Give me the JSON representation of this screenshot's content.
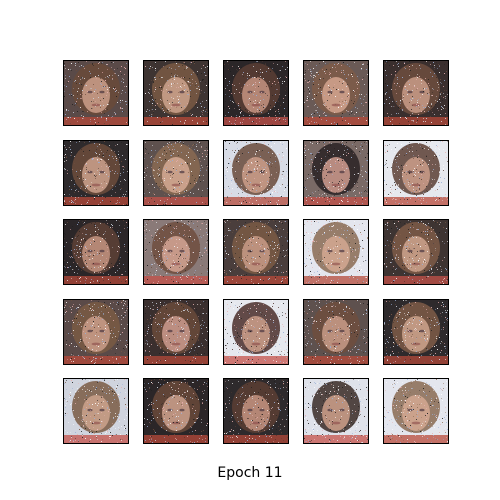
{
  "figure": {
    "caption": "Epoch 11",
    "background_color": "#ffffff",
    "border_color": "#000000",
    "grid": {
      "rows": 5,
      "cols": 5
    },
    "samples": [
      {
        "bg": "#5a4a48",
        "hair": "#6a4a3a",
        "skin": "#c79a86",
        "noise": "#d8e2f0",
        "fringe": "#b44a3a"
      },
      {
        "bg": "#3e3432",
        "hair": "#7a5a44",
        "skin": "#c9a08a",
        "noise": "#e6ecf4",
        "fringe": "#b8493a"
      },
      {
        "bg": "#2b2628",
        "hair": "#5a3e34",
        "skin": "#bf8f7c",
        "noise": "#d6dde8",
        "fringe": "#c4524a"
      },
      {
        "bg": "#6a5a56",
        "hair": "#7e5c48",
        "skin": "#cfa18c",
        "noise": "#e3e9f2",
        "fringe": "#b8493a"
      },
      {
        "bg": "#3a2f2e",
        "hair": "#6e4e3e",
        "skin": "#c49884",
        "noise": "#d9e0ec",
        "fringe": "#b44a3a"
      },
      {
        "bg": "#2e2a2c",
        "hair": "#6c4c3c",
        "skin": "#c69c88",
        "noise": "#dde4ee",
        "fringe": "#b8493a"
      },
      {
        "bg": "#5e514e",
        "hair": "#8a6a52",
        "skin": "#d0a690",
        "noise": "#e6ecf4",
        "fringe": "#c4524a"
      },
      {
        "bg": "#d8dce6",
        "hair": "#6a4a3a",
        "skin": "#c79a86",
        "noise": "#f0f2f8",
        "fringe": "#b44a3a"
      },
      {
        "bg": "#7a6a66",
        "hair": "#2a2224",
        "skin": "#c6968a",
        "noise": "#e3e9f2",
        "fringe": "#c4524a"
      },
      {
        "bg": "#e6e8ee",
        "hair": "#5a3e34",
        "skin": "#c79a86",
        "noise": "#f4f4f8",
        "fringe": "#b8493a"
      },
      {
        "bg": "#2b2628",
        "hair": "#5e4236",
        "skin": "#bf8f7c",
        "noise": "#d6dde8",
        "fringe": "#b44a3a"
      },
      {
        "bg": "#8a7a78",
        "hair": "#6e4e3e",
        "skin": "#cfa190",
        "noise": "#eef0f6",
        "fringe": "#c4524a"
      },
      {
        "bg": "#4a3e3c",
        "hair": "#7a5a44",
        "skin": "#c49884",
        "noise": "#e0e6f0",
        "fringe": "#b8493a"
      },
      {
        "bg": "#e4e6ee",
        "hair": "#8a6a52",
        "skin": "#d0a690",
        "noise": "#f4f4f8",
        "fringe": "#b44a3a"
      },
      {
        "bg": "#3e3432",
        "hair": "#7e5c48",
        "skin": "#c9a08a",
        "noise": "#dde4ee",
        "fringe": "#c4524a"
      },
      {
        "bg": "#5a4a48",
        "hair": "#7a5a44",
        "skin": "#c79a86",
        "noise": "#e3e9f2",
        "fringe": "#b8493a"
      },
      {
        "bg": "#3a2f2e",
        "hair": "#6a4a3a",
        "skin": "#c6968a",
        "noise": "#d9e0ec",
        "fringe": "#b44a3a"
      },
      {
        "bg": "#e6e8ee",
        "hair": "#4a2e2a",
        "skin": "#c79a86",
        "noise": "#f4f4f8",
        "fringe": "#c4524a"
      },
      {
        "bg": "#5e514e",
        "hair": "#6e4e3e",
        "skin": "#c49884",
        "noise": "#e0e6f0",
        "fringe": "#b8493a"
      },
      {
        "bg": "#2e2a2c",
        "hair": "#7e5c48",
        "skin": "#c9a08a",
        "noise": "#dde4ee",
        "fringe": "#b44a3a"
      },
      {
        "bg": "#d0d4de",
        "hair": "#7a5a44",
        "skin": "#c9a08a",
        "noise": "#eef0f6",
        "fringe": "#c4524a"
      },
      {
        "bg": "#2b2628",
        "hair": "#6a4a3a",
        "skin": "#c69c88",
        "noise": "#d6dde8",
        "fringe": "#b8493a"
      },
      {
        "bg": "#2e2a2c",
        "hair": "#5a3e34",
        "skin": "#bf8f7c",
        "noise": "#dde4ee",
        "fringe": "#b44a3a"
      },
      {
        "bg": "#dfe2ea",
        "hair": "#3a2a26",
        "skin": "#c79a86",
        "noise": "#f0f2f8",
        "fringe": "#c4524a"
      },
      {
        "bg": "#e4e6ee",
        "hair": "#8a6a52",
        "skin": "#d0a690",
        "noise": "#f4f4f8",
        "fringe": "#b8493a"
      }
    ]
  }
}
